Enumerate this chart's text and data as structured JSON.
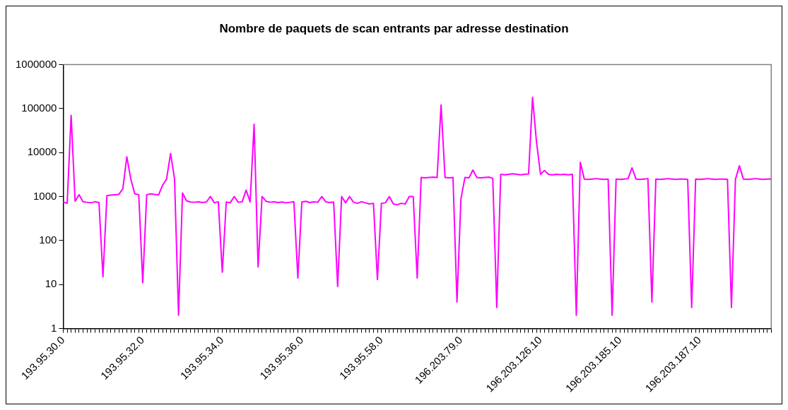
{
  "chart_data": {
    "type": "line",
    "title": "Nombre de paquets de scan entrants par adresse destination",
    "categories": [
      "193.95.30.0",
      null,
      null,
      null,
      null,
      null,
      null,
      null,
      null,
      null,
      null,
      null,
      null,
      null,
      null,
      null,
      null,
      null,
      null,
      null,
      "193.95.32.0",
      null,
      null,
      null,
      null,
      null,
      null,
      null,
      null,
      null,
      null,
      null,
      null,
      null,
      null,
      null,
      null,
      null,
      null,
      null,
      "193.95.34.0",
      null,
      null,
      null,
      null,
      null,
      null,
      null,
      null,
      null,
      null,
      null,
      null,
      null,
      null,
      null,
      null,
      null,
      null,
      null,
      "193.95.36.0",
      null,
      null,
      null,
      null,
      null,
      null,
      null,
      null,
      null,
      null,
      null,
      null,
      null,
      null,
      null,
      null,
      null,
      null,
      null,
      "193.95.58.0",
      null,
      null,
      null,
      null,
      null,
      null,
      null,
      null,
      null,
      null,
      null,
      null,
      null,
      null,
      null,
      null,
      null,
      null,
      null,
      "196.203.79.0",
      null,
      null,
      null,
      null,
      null,
      null,
      null,
      null,
      null,
      null,
      null,
      null,
      null,
      null,
      null,
      null,
      null,
      null,
      null,
      "196.203.126.10",
      null,
      null,
      null,
      null,
      null,
      null,
      null,
      null,
      null,
      null,
      null,
      null,
      null,
      null,
      null,
      null,
      null,
      null,
      null,
      "196.203.185.10",
      null,
      null,
      null,
      null,
      null,
      null,
      null,
      null,
      null,
      null,
      null,
      null,
      null,
      null,
      null,
      null,
      null,
      null,
      null,
      "196.203.187.10",
      null,
      null,
      null,
      null,
      null,
      null,
      null,
      null,
      null,
      null,
      null,
      null,
      null,
      null,
      null,
      null,
      null,
      null
    ],
    "series": [
      {
        "color": "#ff00ff",
        "values": [
          750,
          700,
          70000,
          780,
          1100,
          760,
          740,
          720,
          760,
          730,
          15,
          1050,
          1080,
          1100,
          1120,
          1500,
          8000,
          2500,
          1150,
          1100,
          11,
          1100,
          1150,
          1120,
          1100,
          1800,
          2500,
          9500,
          2500,
          2,
          1200,
          800,
          750,
          740,
          760,
          730,
          750,
          1000,
          720,
          760,
          19,
          750,
          720,
          1000,
          740,
          760,
          1400,
          750,
          44000,
          25,
          1000,
          780,
          740,
          760,
          730,
          750,
          720,
          740,
          760,
          14,
          750,
          780,
          730,
          760,
          740,
          1000,
          760,
          730,
          750,
          9,
          1000,
          720,
          1000,
          740,
          700,
          760,
          720,
          680,
          700,
          13,
          700,
          720,
          1000,
          680,
          650,
          700,
          680,
          1000,
          1000,
          14,
          2700,
          2650,
          2700,
          2750,
          2700,
          120000,
          2700,
          2650,
          2700,
          4,
          900,
          2700,
          2650,
          4000,
          2700,
          2650,
          2700,
          2750,
          2600,
          3,
          3200,
          3100,
          3200,
          3300,
          3200,
          3100,
          3200,
          3250,
          180000,
          17000,
          3200,
          3900,
          3200,
          3100,
          3200,
          3150,
          3200,
          3100,
          3200,
          2,
          6000,
          2500,
          2450,
          2500,
          2550,
          2500,
          2450,
          2500,
          2,
          2500,
          2450,
          2500,
          2550,
          4500,
          2500,
          2450,
          2500,
          2550,
          4,
          2500,
          2450,
          2500,
          2550,
          2500,
          2450,
          2500,
          2500,
          2450,
          3,
          2500,
          2450,
          2500,
          2550,
          2500,
          2450,
          2500,
          2500,
          2450,
          3,
          2450,
          5000,
          2500,
          2450,
          2500,
          2550,
          2500,
          2450,
          2500,
          2500
        ]
      }
    ],
    "log": "y",
    "ylim": [
      1,
      1000000
    ],
    "yticks": [
      1,
      10,
      100,
      1000,
      10000,
      100000,
      1000000
    ],
    "marker": "none",
    "line_style": "solid",
    "legend": false,
    "grid": false
  }
}
